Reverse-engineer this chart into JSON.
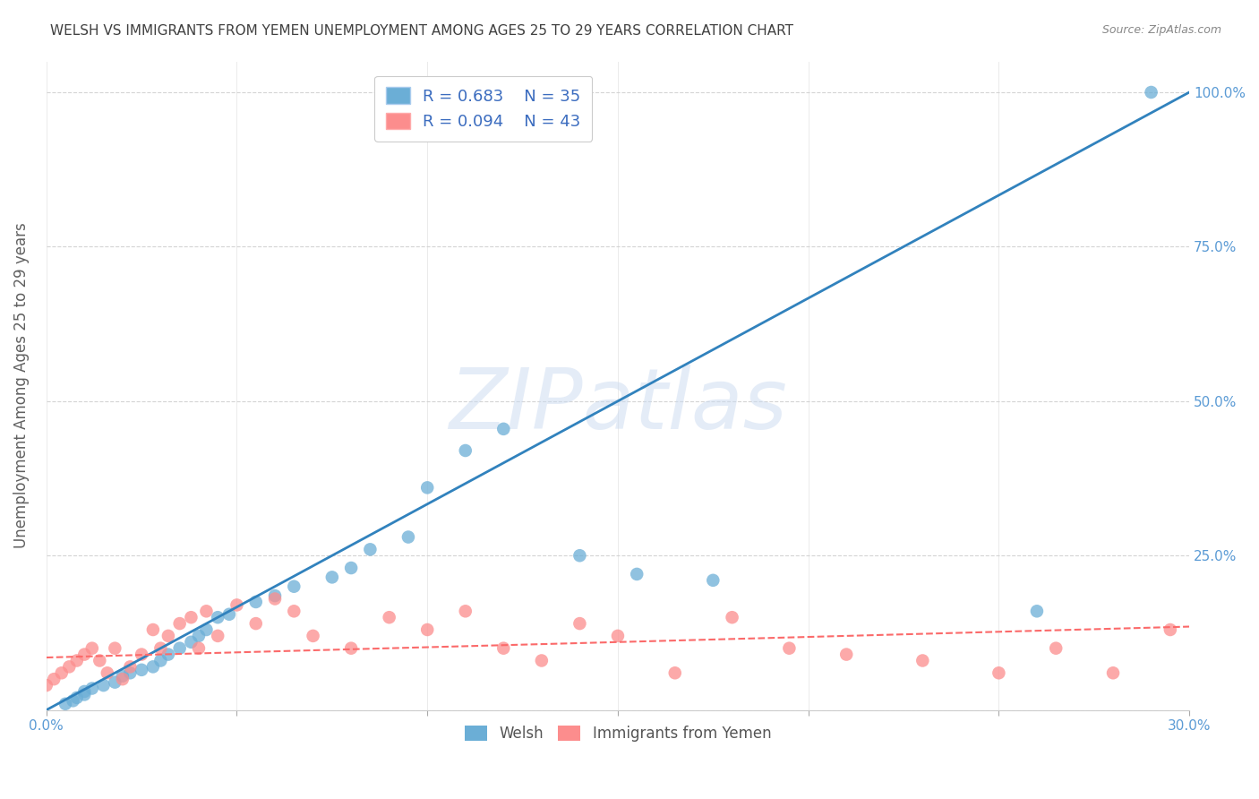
{
  "title": "WELSH VS IMMIGRANTS FROM YEMEN UNEMPLOYMENT AMONG AGES 25 TO 29 YEARS CORRELATION CHART",
  "source": "Source: ZipAtlas.com",
  "ylabel": "Unemployment Among Ages 25 to 29 years",
  "watermark": "ZIPatlas",
  "xmin": 0.0,
  "xmax": 0.3,
  "ymin": 0.0,
  "ymax": 1.05,
  "yticks": [
    0.0,
    0.25,
    0.5,
    0.75,
    1.0
  ],
  "ytick_labels": [
    "",
    "25.0%",
    "50.0%",
    "75.0%",
    "100.0%"
  ],
  "xticks": [
    0.0,
    0.05,
    0.1,
    0.15,
    0.2,
    0.25,
    0.3
  ],
  "welsh_color": "#6baed6",
  "yemen_color": "#fc8d8d",
  "welsh_line_color": "#3182bd",
  "yemen_line_color": "#fb6a6a",
  "legend_welsh_r": "R = 0.683",
  "legend_welsh_n": "N = 35",
  "legend_yemen_r": "R = 0.094",
  "legend_yemen_n": "N = 43",
  "welsh_x": [
    0.005,
    0.007,
    0.008,
    0.01,
    0.01,
    0.012,
    0.015,
    0.018,
    0.02,
    0.022,
    0.025,
    0.028,
    0.03,
    0.032,
    0.035,
    0.038,
    0.04,
    0.042,
    0.045,
    0.048,
    0.055,
    0.06,
    0.065,
    0.075,
    0.08,
    0.085,
    0.095,
    0.1,
    0.11,
    0.12,
    0.14,
    0.155,
    0.175,
    0.26,
    0.29
  ],
  "welsh_y": [
    0.01,
    0.015,
    0.02,
    0.025,
    0.03,
    0.035,
    0.04,
    0.045,
    0.055,
    0.06,
    0.065,
    0.07,
    0.08,
    0.09,
    0.1,
    0.11,
    0.12,
    0.13,
    0.15,
    0.155,
    0.175,
    0.185,
    0.2,
    0.215,
    0.23,
    0.26,
    0.28,
    0.36,
    0.42,
    0.455,
    0.25,
    0.22,
    0.21,
    0.16,
    1.0
  ],
  "yemen_x": [
    0.0,
    0.002,
    0.004,
    0.006,
    0.008,
    0.01,
    0.012,
    0.014,
    0.016,
    0.018,
    0.02,
    0.022,
    0.025,
    0.028,
    0.03,
    0.032,
    0.035,
    0.038,
    0.04,
    0.042,
    0.045,
    0.05,
    0.055,
    0.06,
    0.065,
    0.07,
    0.08,
    0.09,
    0.1,
    0.11,
    0.12,
    0.13,
    0.14,
    0.15,
    0.165,
    0.18,
    0.195,
    0.21,
    0.23,
    0.25,
    0.265,
    0.28,
    0.295
  ],
  "yemen_y": [
    0.04,
    0.05,
    0.06,
    0.07,
    0.08,
    0.09,
    0.1,
    0.08,
    0.06,
    0.1,
    0.05,
    0.07,
    0.09,
    0.13,
    0.1,
    0.12,
    0.14,
    0.15,
    0.1,
    0.16,
    0.12,
    0.17,
    0.14,
    0.18,
    0.16,
    0.12,
    0.1,
    0.15,
    0.13,
    0.16,
    0.1,
    0.08,
    0.14,
    0.12,
    0.06,
    0.15,
    0.1,
    0.09,
    0.08,
    0.06,
    0.1,
    0.06,
    0.13
  ],
  "welsh_trend_x": [
    0.0,
    0.3
  ],
  "welsh_trend_y": [
    0.0,
    1.0
  ],
  "yemen_trend_x": [
    0.0,
    0.3
  ],
  "yemen_trend_y": [
    0.085,
    0.135
  ],
  "title_color": "#404040",
  "axis_label_color": "#606060",
  "tick_color": "#5b9bd5",
  "grid_color": "#d0d0d0",
  "background_color": "#ffffff"
}
